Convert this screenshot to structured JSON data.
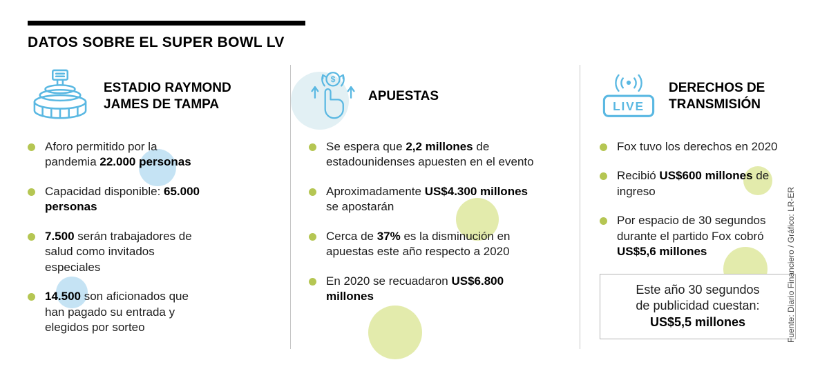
{
  "header": {
    "title": "DATOS SOBRE EL SUPER BOWL LV"
  },
  "columns": [
    {
      "id": "estadio",
      "icon": "stadium-icon",
      "title": "ESTADIO RAYMOND JAMES DE TAMPA",
      "items": [
        "Aforo permitido por la pandemia **22.000 personas**",
        "Capacidad disponible: **65.000 personas**",
        "**7.500** serán trabajadores de salud como invitados especiales",
        "**14.500** son aficionados que han pagado su entrada y elegidos por sorteo"
      ]
    },
    {
      "id": "apuestas",
      "icon": "betting-hand-icon",
      "icon_symbol": "$",
      "title": "APUESTAS",
      "items": [
        "Se espera que **2,2 millones** de estadounidenses apuesten en el evento",
        "Aproximadamente **US$4.300 millones** se apostarán",
        "Cerca de **37%** es la disminución en apuestas este año respecto a 2020",
        "En 2020 se recuadaron **US$6.800 millones**"
      ]
    },
    {
      "id": "derechos",
      "icon": "live-broadcast-icon",
      "icon_label": "LIVE",
      "title": "DERECHOS DE TRANSMISIÓN",
      "items": [
        "Fox tuvo los derechos en 2020",
        "Recibió **US$600 millones** de ingreso",
        "Por espacio de 30 segundos durante el partido Fox cobró **US$5,6 millones**"
      ],
      "box": {
        "line1": "Este año 30 segundos",
        "line2": "de publicidad cuestan:",
        "value": "US$5,5 millones"
      }
    }
  ],
  "source": "Fuente: Diario Financiero / Gráfico: LR-ER",
  "colors": {
    "accent_blue": "#5ab8e2",
    "bullet_green": "#b5c653",
    "circle_blue": "#c5e3f4",
    "circle_green": "#e3ebac",
    "circle_teal": "#e2f0f4",
    "divider_gray": "#c6c6c6"
  }
}
